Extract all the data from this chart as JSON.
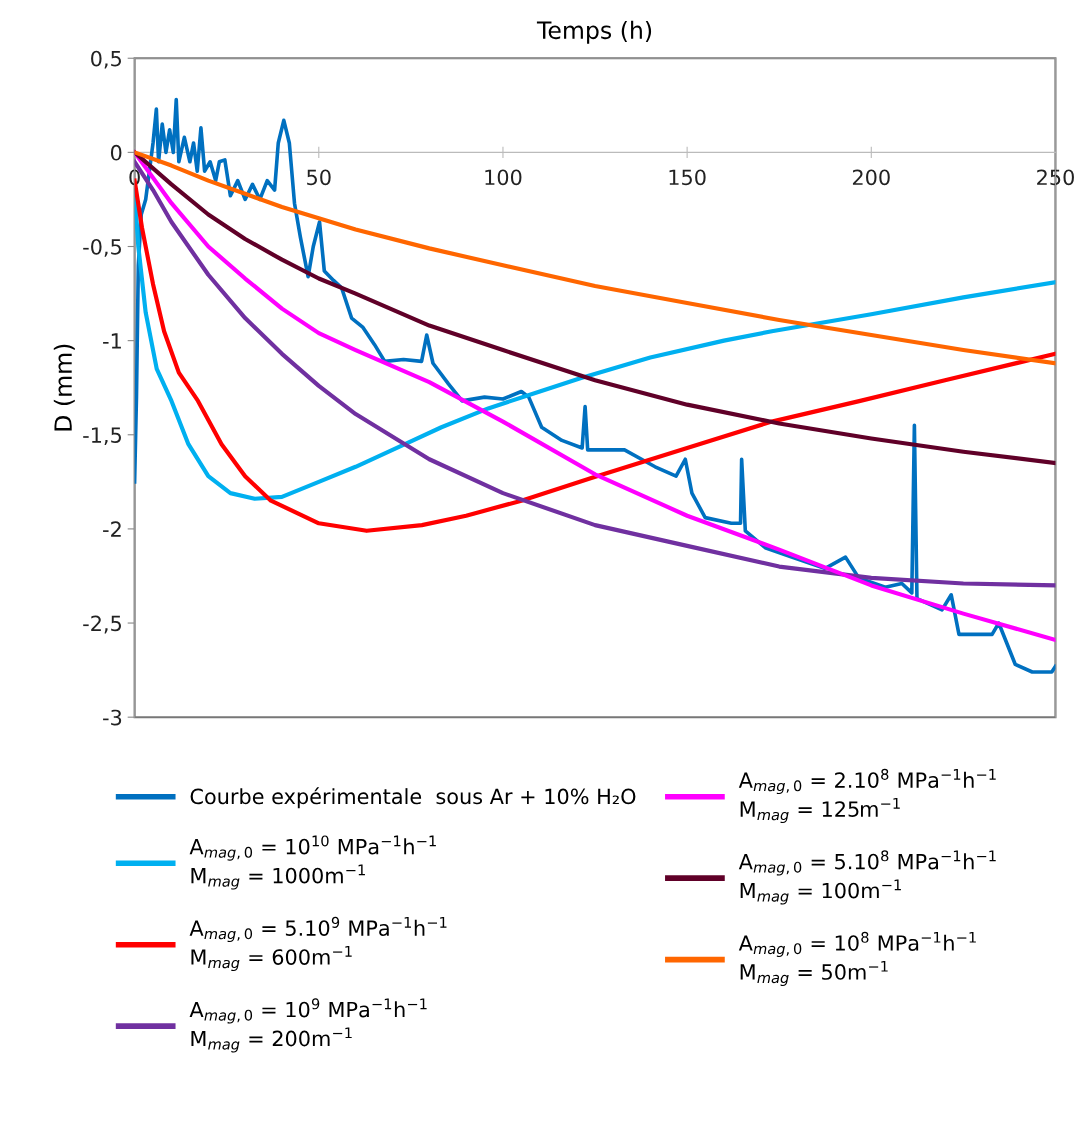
{
  "chart_data": {
    "type": "line",
    "xlabel": "Temps (h)",
    "ylabel": "D (mm)",
    "xlim": [
      0,
      250
    ],
    "xticks": [
      0,
      50,
      100,
      150,
      200,
      250
    ],
    "ylim": [
      -3,
      0.5
    ],
    "yticks": [
      {
        "value": 0.5,
        "label": "0,5"
      },
      0,
      {
        "value": -0.5,
        "label": "-0,5"
      },
      -1,
      {
        "value": -1.5,
        "label": "-1,5"
      },
      -2,
      {
        "value": -2.5,
        "label": "-2,5"
      },
      -3
    ],
    "grid": false,
    "legend": "bottom",
    "line_style": "solid",
    "series": [
      {
        "name": "Courbe expérimentale  sous Ar + 10% H₂O",
        "color": "#0070c0",
        "x": [
          0,
          0.5,
          1,
          1.8,
          3,
          4,
          5,
          5.9,
          6.5,
          7.5,
          8.5,
          9.5,
          10.5,
          11.3,
          12,
          13.5,
          15,
          16,
          17,
          18,
          19,
          20.5,
          22,
          23,
          24.5,
          26,
          28,
          30,
          32,
          34,
          36,
          38,
          39,
          40.5,
          42,
          43.4,
          45,
          47.1,
          48.5,
          50.2,
          51.5,
          54,
          56.2,
          58.9,
          62,
          65.1,
          67.9,
          73,
          77.9,
          79.3,
          81,
          85.2,
          88.9,
          95,
          100,
          105,
          107,
          110.5,
          116,
          121.5,
          122.3,
          123,
          133,
          141.3,
          147,
          149.5,
          151.3,
          154.9,
          162,
          164.5,
          164.8,
          165.8,
          171.2,
          178.4,
          187.5,
          193,
          196.6,
          203.8,
          208.3,
          211,
          211.7,
          212.4,
          219.2,
          221.7,
          223.8,
          232.8,
          234.6,
          239.1,
          243.7,
          249,
          250
        ],
        "values": [
          -1.75,
          -1.3,
          -0.6,
          -0.33,
          -0.25,
          -0.1,
          0.05,
          0.23,
          -0.05,
          0.15,
          0,
          0.12,
          0,
          0.28,
          -0.05,
          0.08,
          -0.05,
          0.05,
          -0.1,
          0.13,
          -0.1,
          -0.05,
          -0.15,
          -0.05,
          -0.04,
          -0.23,
          -0.15,
          -0.25,
          -0.17,
          -0.25,
          -0.15,
          -0.2,
          0.05,
          0.17,
          0.05,
          -0.27,
          -0.45,
          -0.66,
          -0.5,
          -0.37,
          -0.63,
          -0.68,
          -0.72,
          -0.88,
          -0.93,
          -1.02,
          -1.11,
          -1.1,
          -1.11,
          -0.97,
          -1.12,
          -1.23,
          -1.32,
          -1.3,
          -1.31,
          -1.27,
          -1.3,
          -1.46,
          -1.53,
          -1.57,
          -1.35,
          -1.58,
          -1.58,
          -1.67,
          -1.72,
          -1.63,
          -1.81,
          -1.94,
          -1.97,
          -1.97,
          -1.63,
          -2.01,
          -2.1,
          -2.15,
          -2.21,
          -2.15,
          -2.26,
          -2.31,
          -2.29,
          -2.34,
          -1.45,
          -2.37,
          -2.43,
          -2.35,
          -2.56,
          -2.56,
          -2.5,
          -2.72,
          -2.76,
          -2.76,
          -2.73
        ]
      },
      {
        "name": "A$_{mag,0}$ = 10$^{10}$ MPa$^{−1}$h$^{−1}$\nM$_{mag}$ = 1000m$^{−1}$",
        "color": "#00b0f0",
        "x": [
          0,
          1,
          3,
          6,
          10,
          14.6,
          20,
          26,
          32.6,
          40,
          50,
          60,
          73.4,
          83.3,
          96,
          110,
          121,
          140,
          160,
          173,
          200,
          225,
          250
        ],
        "values": [
          -0.2,
          -0.5,
          -0.85,
          -1.15,
          -1.32,
          -1.55,
          -1.72,
          -1.81,
          -1.84,
          -1.83,
          -1.75,
          -1.67,
          -1.55,
          -1.46,
          -1.36,
          -1.27,
          -1.2,
          -1.09,
          -1.0,
          -0.95,
          -0.86,
          -0.77,
          -0.69
        ]
      },
      {
        "name": "A$_{mag,0}$ = 5.10$^{9}$ MPa$^{−1}$h$^{−1}$\nM$_{mag}$ = 600m$^{−1}$",
        "color": "#ff0000",
        "x": [
          0,
          2,
          5,
          8,
          12,
          17.2,
          23.6,
          30,
          37,
          50,
          63,
          78,
          90,
          105,
          124,
          150,
          173,
          197,
          220,
          250
        ],
        "values": [
          -0.15,
          -0.4,
          -0.7,
          -0.95,
          -1.17,
          -1.32,
          -1.55,
          -1.72,
          -1.85,
          -1.97,
          -2.01,
          -1.98,
          -1.93,
          -1.85,
          -1.73,
          -1.57,
          -1.43,
          -1.32,
          -1.21,
          -1.07
        ]
      },
      {
        "name": "A$_{mag,0}$ = 10$^{9}$ MPa$^{−1}$h$^{−1}$\nM$_{mag}$ = 200m$^{−1}$",
        "color": "#7030a0",
        "x": [
          0,
          5,
          10,
          20,
          30,
          40,
          50,
          60,
          80,
          100,
          125,
          150,
          175,
          200,
          225,
          250
        ],
        "values": [
          -0.05,
          -0.2,
          -0.37,
          -0.65,
          -0.88,
          -1.07,
          -1.24,
          -1.39,
          -1.63,
          -1.81,
          -1.98,
          -2.09,
          -2.2,
          -2.26,
          -2.29,
          -2.3
        ]
      },
      {
        "name": "A$_{mag,0}$ = 2.10$^{8}$ MPa$^{−1}$h$^{−1}$\nM$_{mag}$ = 125m$^{−1}$",
        "color": "#ff00ff",
        "x": [
          0,
          10,
          20,
          30,
          40,
          50,
          60,
          80,
          100,
          125,
          150,
          175,
          200,
          225,
          250
        ],
        "values": [
          0,
          -0.27,
          -0.5,
          -0.67,
          -0.83,
          -0.96,
          -1.05,
          -1.22,
          -1.43,
          -1.71,
          -1.93,
          -2.11,
          -2.3,
          -2.45,
          -2.59
        ]
      },
      {
        "name": "A$_{mag,0}$ = 5.10$^{8}$ MPa$^{−1}$h$^{−1}$\nM$_{mag}$ = 100m$^{−1}$",
        "color": "#600028",
        "x": [
          0,
          10,
          20,
          30,
          40,
          50,
          60,
          80,
          100,
          125,
          150,
          175,
          200,
          225,
          250
        ],
        "values": [
          0,
          -0.17,
          -0.33,
          -0.46,
          -0.57,
          -0.67,
          -0.75,
          -0.92,
          -1.05,
          -1.21,
          -1.34,
          -1.44,
          -1.52,
          -1.59,
          -1.65
        ]
      },
      {
        "name": "A$_{mag,0}$ = 10$^{8}$ MPa$^{−1}$h$^{−1}$\nM$_{mag}$ = 50m$^{−1}$",
        "color": "#ff6600",
        "x": [
          0,
          10,
          20,
          30,
          40,
          50,
          60,
          80,
          100,
          125,
          150,
          175,
          200,
          225,
          250
        ],
        "values": [
          0,
          -0.07,
          -0.15,
          -0.22,
          -0.29,
          -0.35,
          -0.41,
          -0.51,
          -0.6,
          -0.71,
          -0.8,
          -0.89,
          -0.97,
          -1.05,
          -1.12
        ]
      }
    ]
  }
}
